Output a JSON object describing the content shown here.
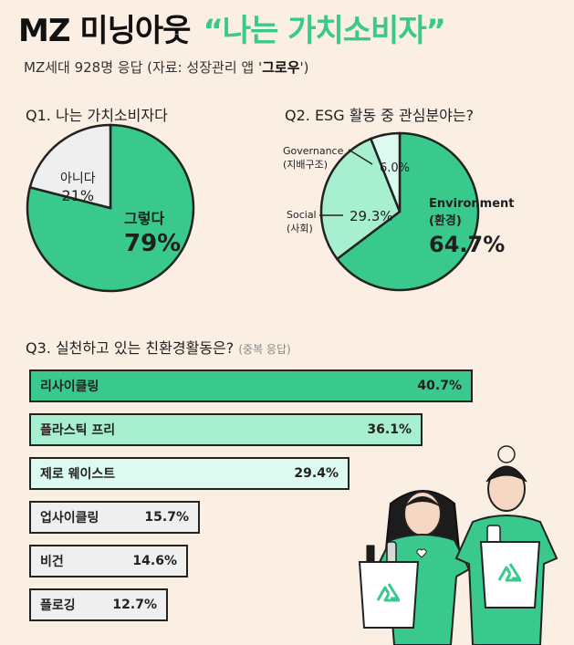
{
  "header": {
    "title_main": "MZ 미닝아웃",
    "title_quote": "“나는 가치소비자”",
    "subtitle_pre": "MZ세대 928명 응답 (자료: 성장관리 앱 '",
    "subtitle_app": "그로우",
    "subtitle_post": "')"
  },
  "colors": {
    "green": "#39c98c",
    "light_green": "#a8efcf",
    "pale_green": "#dcfaef",
    "pale_gray": "#efefef",
    "background": "#fbeee3"
  },
  "chart_data": [
    {
      "type": "pie",
      "title": "Q1. 나는 가치소비자다",
      "slices": [
        {
          "label": "그렇다",
          "value": 79,
          "value_label": "79%"
        },
        {
          "label": "아니다",
          "value": 21,
          "value_label": "21%"
        }
      ]
    },
    {
      "type": "pie",
      "title": "Q2. ESG 활동 중 관심분야는?",
      "slices": [
        {
          "label": "Environment",
          "sublabel": "(환경)",
          "value": 64.7,
          "value_label": "64.7%"
        },
        {
          "label": "Social",
          "sublabel": "(사회)",
          "value": 29.3,
          "value_label": "29.3%"
        },
        {
          "label": "Governance",
          "sublabel": "(지배구조)",
          "value": 6.0,
          "value_label": "6.0%"
        }
      ]
    },
    {
      "type": "bar",
      "title": "Q3. 실천하고 있는 친환경활동은?",
      "note": "(중복 응답)",
      "categories": [
        "리사이클링",
        "플라스틱 프리",
        "제로 웨이스트",
        "업사이클링",
        "비건",
        "플로깅"
      ],
      "values": [
        40.7,
        36.1,
        29.4,
        15.7,
        14.6,
        12.7
      ],
      "value_labels": [
        "40.7%",
        "36.1%",
        "29.4%",
        "15.7%",
        "14.6%",
        "12.7%"
      ]
    }
  ]
}
